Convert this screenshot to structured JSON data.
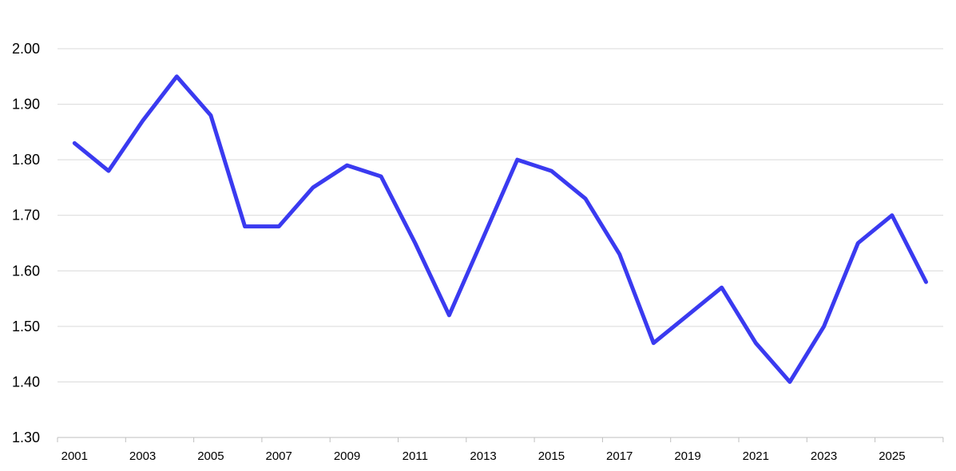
{
  "chart_data": {
    "type": "line",
    "title": "",
    "xlabel": "",
    "ylabel": "",
    "x": [
      2001,
      2002,
      2003,
      2004,
      2005,
      2006,
      2007,
      2008,
      2009,
      2010,
      2011,
      2012,
      2013,
      2014,
      2015,
      2016,
      2017,
      2018,
      2019,
      2020,
      2021,
      2022,
      2023,
      2024,
      2025,
      2026
    ],
    "series": [
      {
        "values": [
          1.83,
          1.78,
          1.87,
          1.95,
          1.88,
          1.68,
          1.68,
          1.75,
          1.79,
          1.77,
          1.65,
          1.52,
          1.66,
          1.8,
          1.78,
          1.73,
          1.63,
          1.47,
          1.52,
          1.57,
          1.47,
          1.4,
          1.5,
          1.65,
          1.7,
          1.58
        ],
        "color": "#3a3af0"
      }
    ],
    "ylim": [
      1.3,
      2.0
    ],
    "yticks": [
      "1.30",
      "1.40",
      "1.50",
      "1.60",
      "1.70",
      "1.80",
      "1.90",
      "2.00"
    ],
    "xtick_labels": [
      "2001",
      "2003",
      "2005",
      "2007",
      "2009",
      "2011",
      "2013",
      "2015",
      "2017",
      "2019",
      "2021",
      "2023",
      "2025"
    ],
    "grid": true,
    "legend": "none"
  }
}
